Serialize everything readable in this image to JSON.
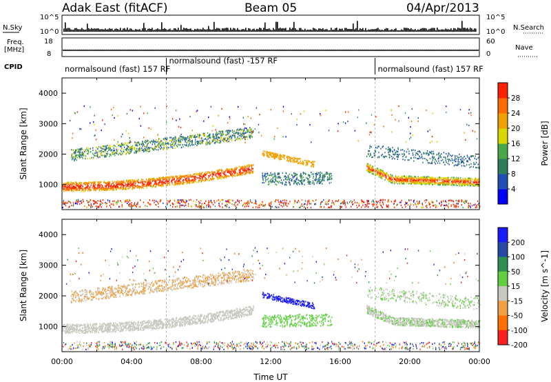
{
  "header": {
    "station": "Adak East (fitACF)",
    "beam": "Beam 05",
    "date": "04/Apr/2013"
  },
  "summary_labels": {
    "nsky": "N.Sky",
    "nsky_tick_top": "10^5",
    "nsky_tick_bottom": "10^0",
    "freq_line1": "Freq.",
    "freq_line2": "[MHz]",
    "freq_tick_top": "18",
    "freq_tick_bottom": "8",
    "nsearch": "N.Search",
    "nsearch_tick_top": "10^5",
    "nsearch_tick_bottom": "10^0",
    "nave": "Nave",
    "nave_tick_top": "60",
    "nave_tick_bottom": "0",
    "cpid": "CPID"
  },
  "cpid_segments": [
    {
      "label": "normalsound (fast) 157 RF",
      "start_h": 0,
      "end_h": 6
    },
    {
      "label": "normalsound (fast) -157 RF",
      "start_h": 6,
      "end_h": 18
    },
    {
      "label": "normalsound (fast) 157 RF",
      "start_h": 18,
      "end_h": 24
    }
  ],
  "chart_data": [
    {
      "type": "heatmap",
      "name": "power",
      "ylabel": "Slant Range [km]",
      "xlabel": "Time UT",
      "x_range_h": [
        0,
        24
      ],
      "x_ticks": [
        "00:00",
        "04:00",
        "08:00",
        "12:00",
        "16:00",
        "20:00",
        "00:00"
      ],
      "ylim": [
        180,
        4500
      ],
      "y_ticks": [
        1000,
        2000,
        3000,
        4000
      ],
      "colorbar": {
        "label": "Power [dB]",
        "range": [
          0,
          32
        ],
        "ticks": [
          4,
          8,
          12,
          16,
          20,
          24,
          28
        ],
        "colors": [
          "#0000ff",
          "#1f4fb4",
          "#2e7d58",
          "#48a848",
          "#d8d800",
          "#f0a000",
          "#ff6a00",
          "#ff2000"
        ]
      }
    },
    {
      "type": "heatmap",
      "name": "velocity",
      "ylabel": "Slant Range [km]",
      "xlabel": "Time UT",
      "x_range_h": [
        0,
        24
      ],
      "x_ticks": [
        "00:00",
        "04:00",
        "08:00",
        "12:00",
        "16:00",
        "20:00",
        "00:00"
      ],
      "ylim": [
        180,
        4500
      ],
      "y_ticks": [
        1000,
        2000,
        3000,
        4000
      ],
      "colorbar": {
        "label": "Velocity [m s^-1]",
        "ticks": [
          200,
          100,
          50,
          15,
          -15,
          -50,
          -100,
          -200
        ],
        "colors": [
          "#1a1aff",
          "#2848a8",
          "#2e9050",
          "#60d040",
          "#c8c8c0",
          "#f0a040",
          "#ff7000",
          "#ff2020"
        ]
      }
    }
  ],
  "xlabel": "Time UT"
}
